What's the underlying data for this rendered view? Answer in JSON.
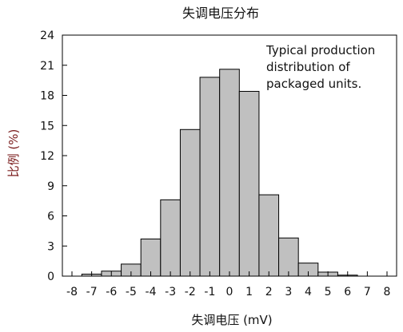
{
  "chart_data": {
    "type": "bar",
    "title": "失调电压分布",
    "xlabel": "失调电压 (mV)",
    "ylabel": "比例 (%)",
    "annotation": [
      "Typical production",
      "distribution of",
      "packaged units."
    ],
    "x_ticks": [
      "-8",
      "-7",
      "-6",
      "-5",
      "-4",
      "-3",
      "-2",
      "-1",
      "0",
      "1",
      "2",
      "3",
      "4",
      "5",
      "6",
      "7",
      "8"
    ],
    "y_ticks": [
      "0",
      "3",
      "6",
      "9",
      "12",
      "15",
      "18",
      "21",
      "24"
    ],
    "xlim": [
      -8,
      8
    ],
    "ylim": [
      0,
      24
    ],
    "bins": [
      {
        "from": -7.5,
        "to": -6.5,
        "value": 0.2
      },
      {
        "from": -6.5,
        "to": -5.5,
        "value": 0.5
      },
      {
        "from": -5.5,
        "to": -4.5,
        "value": 1.2
      },
      {
        "from": -4.5,
        "to": -3.5,
        "value": 3.7
      },
      {
        "from": -3.5,
        "to": -2.5,
        "value": 7.6
      },
      {
        "from": -2.5,
        "to": -1.5,
        "value": 14.6
      },
      {
        "from": -1.5,
        "to": -0.5,
        "value": 19.8
      },
      {
        "from": -0.5,
        "to": 0.5,
        "value": 20.6
      },
      {
        "from": 0.5,
        "to": 1.5,
        "value": 18.4
      },
      {
        "from": 1.5,
        "to": 2.5,
        "value": 8.1
      },
      {
        "from": 2.5,
        "to": 3.5,
        "value": 3.8
      },
      {
        "from": 3.5,
        "to": 4.5,
        "value": 1.3
      },
      {
        "from": 4.5,
        "to": 5.5,
        "value": 0.4
      },
      {
        "from": 5.5,
        "to": 6.5,
        "value": 0.1
      }
    ],
    "bar_color": "#c0c0c0",
    "bar_stroke": "#000000",
    "grid": false
  }
}
